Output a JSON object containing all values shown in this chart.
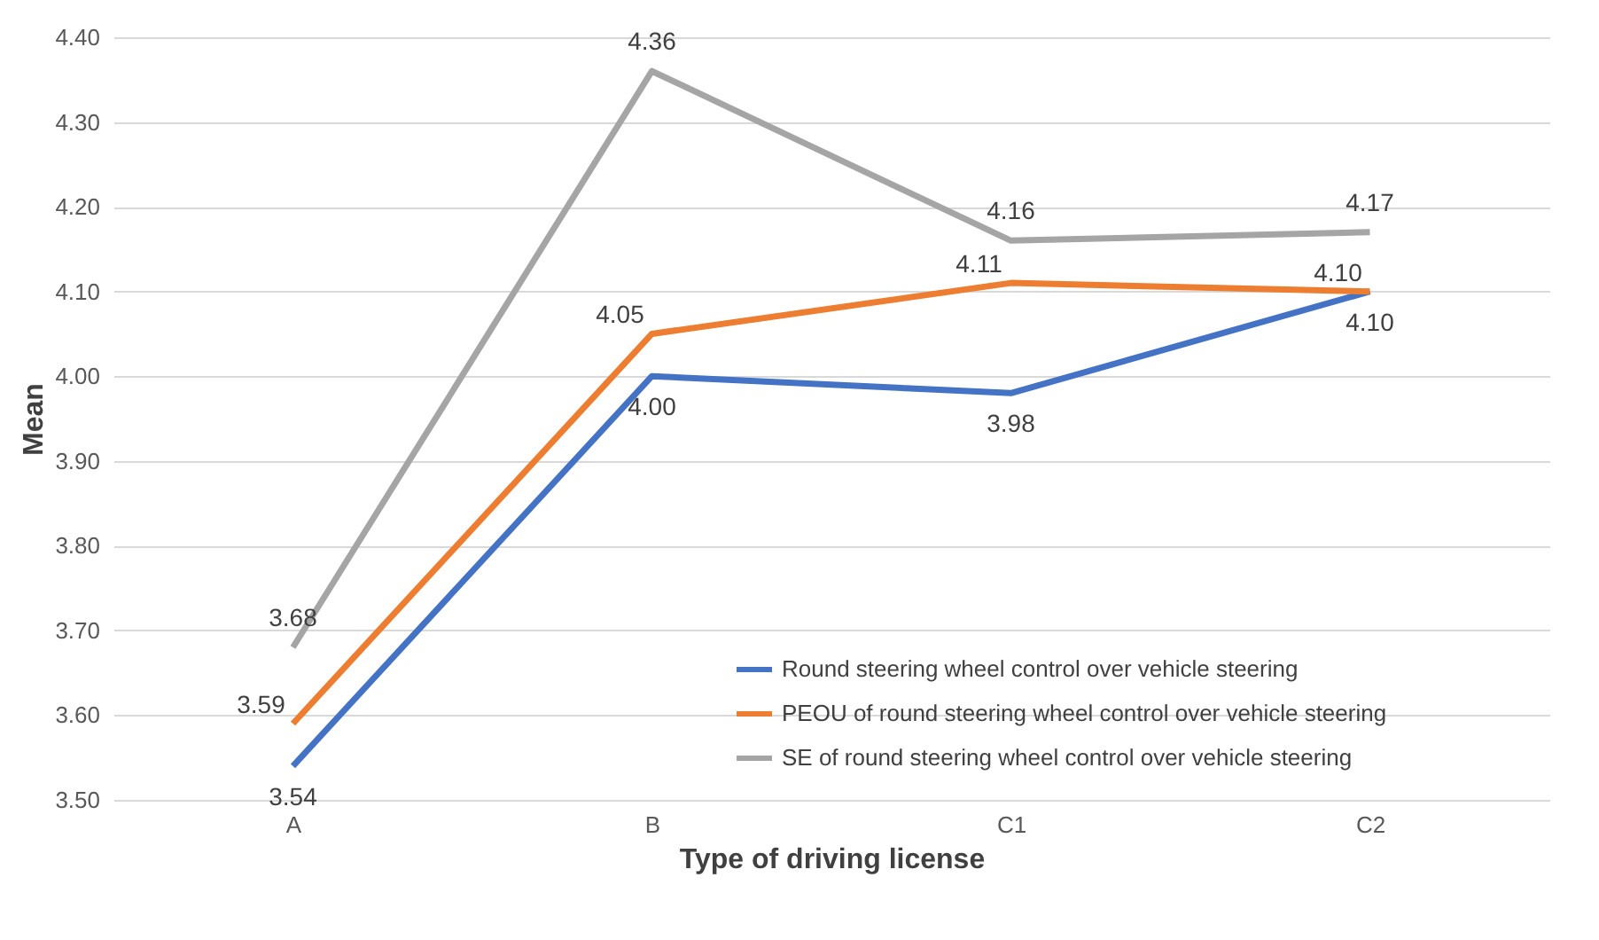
{
  "chart_data": {
    "type": "line",
    "xlabel": "Type of driving license",
    "ylabel": "Mean",
    "categories": [
      "A",
      "B",
      "C1",
      "C2"
    ],
    "series": [
      {
        "name": "Round steering wheel control over vehicle steering",
        "color": "#4472c4",
        "values": [
          3.54,
          4.0,
          3.98,
          4.1
        ],
        "value_labels": [
          "3.54",
          "4.00",
          "3.98",
          "4.10"
        ]
      },
      {
        "name": "PEOU of round steering wheel control over vehicle steering",
        "color": "#ed7d31",
        "values": [
          3.59,
          4.05,
          4.11,
          4.1
        ],
        "value_labels": [
          "3.59",
          "4.05",
          "4.11",
          "4.10"
        ]
      },
      {
        "name": "SE of round steering wheel control over vehicle steering",
        "color": "#a5a5a5",
        "values": [
          3.68,
          4.36,
          4.16,
          4.17
        ],
        "value_labels": [
          "3.68",
          "4.36",
          "4.16",
          "4.17"
        ]
      }
    ],
    "ylim": [
      3.5,
      4.4
    ],
    "yticks": [
      {
        "value": 3.5,
        "label": "3.50"
      },
      {
        "value": 3.6,
        "label": "3.60"
      },
      {
        "value": 3.7,
        "label": "3.70"
      },
      {
        "value": 3.8,
        "label": "3.80"
      },
      {
        "value": 3.9,
        "label": "3.90"
      },
      {
        "value": 4.0,
        "label": "4.00"
      },
      {
        "value": 4.1,
        "label": "4.10"
      },
      {
        "value": 4.2,
        "label": "4.20"
      },
      {
        "value": 4.3,
        "label": "4.30"
      },
      {
        "value": 4.4,
        "label": "4.40"
      }
    ],
    "grid": "y",
    "legend": "bottom right",
    "line_style": "solid"
  }
}
